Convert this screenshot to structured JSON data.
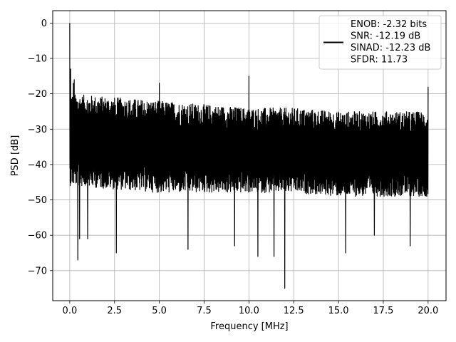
{
  "chart_data": {
    "type": "line",
    "title": "",
    "xlabel": "Frequency [MHz]",
    "ylabel": "PSD [dB]",
    "xlim": [
      -0.95,
      21.0
    ],
    "ylim": [
      -78.5,
      3.5
    ],
    "xticks": [
      0.0,
      2.5,
      5.0,
      7.5,
      10.0,
      12.5,
      15.0,
      17.5,
      20.0
    ],
    "xtick_labels": [
      "0.0",
      "2.5",
      "5.0",
      "7.5",
      "10.0",
      "12.5",
      "15.0",
      "17.5",
      "20.0"
    ],
    "yticks": [
      0,
      -10,
      -20,
      -30,
      -40,
      -50,
      -60,
      -70
    ],
    "ytick_labels": [
      "0",
      "−10",
      "−20",
      "−30",
      "−40",
      "−50",
      "−60",
      "−70"
    ],
    "grid": true,
    "legend_position": "top-right",
    "line_color": "#000000",
    "series": [
      {
        "name": "ENOB: -2.32 bits\nSNR: -12.19 dB\nSINAD: -12.23 dB\nSFDR: 11.73",
        "legend_lines": [
          "ENOB: -2.32 bits",
          "SNR: -12.19 dB",
          "SINAD: -12.23 dB",
          "SFDR: 11.73"
        ],
        "description": "dense noisy power spectral density trace",
        "noise_floor": {
          "x": [
            0.0,
            2.5,
            5.0,
            7.5,
            10.0,
            12.5,
            15.0,
            17.5,
            20.0
          ],
          "upper": [
            -20,
            -21,
            -22,
            -23,
            -24,
            -24,
            -25,
            -25,
            -25
          ],
          "lower": [
            -46,
            -47,
            -48,
            -48,
            -48,
            -48,
            -49,
            -49,
            -49
          ]
        },
        "peaks": [
          {
            "x": 0.0,
            "y": 0
          },
          {
            "x": 0.05,
            "y": -13
          },
          {
            "x": 0.2,
            "y": -17
          },
          {
            "x": 0.25,
            "y": -16
          },
          {
            "x": 5.0,
            "y": -17
          },
          {
            "x": 10.0,
            "y": -15
          },
          {
            "x": 20.0,
            "y": -18
          }
        ],
        "dips": [
          {
            "x": 0.45,
            "y": -67
          },
          {
            "x": 0.55,
            "y": -61
          },
          {
            "x": 1.0,
            "y": -61
          },
          {
            "x": 2.6,
            "y": -65
          },
          {
            "x": 6.6,
            "y": -64
          },
          {
            "x": 9.2,
            "y": -63
          },
          {
            "x": 10.5,
            "y": -66
          },
          {
            "x": 11.4,
            "y": -66
          },
          {
            "x": 12.0,
            "y": -75
          },
          {
            "x": 15.4,
            "y": -65
          },
          {
            "x": 17.0,
            "y": -60
          },
          {
            "x": 19.0,
            "y": -63
          }
        ]
      }
    ]
  }
}
